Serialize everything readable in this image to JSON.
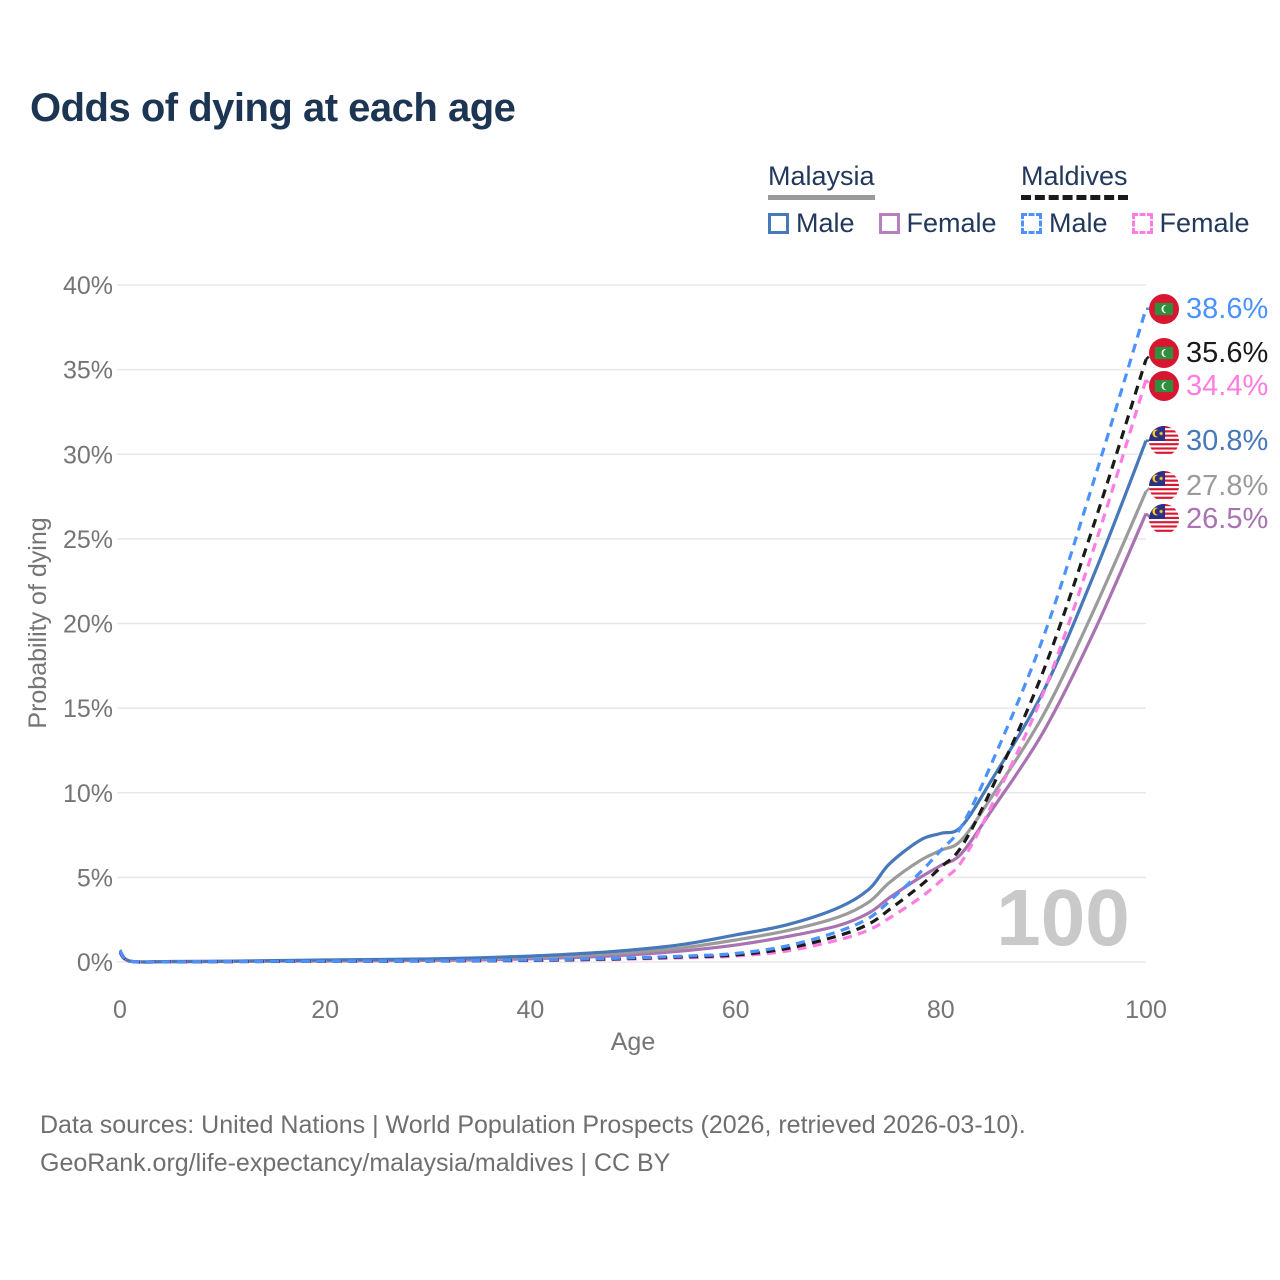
{
  "title": "Odds of dying at each age",
  "watermark": "100",
  "source": {
    "line1": "Data sources: United Nations | World Population Prospects (2026, retrieved 2026-03-10).",
    "line2": "GeoRank.org/life-expectancy/malaysia/maldives | CC BY"
  },
  "legend": {
    "groups": [
      {
        "label": "Malaysia",
        "line_style": "solid",
        "underline_color": "#9a9a9a",
        "items": [
          {
            "label": "Male",
            "color": "#4678ba"
          },
          {
            "label": "Female",
            "color": "#b77fbd"
          }
        ]
      },
      {
        "label": "Maldives",
        "line_style": "dashed",
        "underline_color": "#1a1a1a",
        "items": [
          {
            "label": "Male",
            "color": "#4b92ff"
          },
          {
            "label": "Female",
            "color": "#ff7de2"
          }
        ]
      }
    ]
  },
  "chart_data": {
    "type": "line",
    "title": "Odds of dying at each age",
    "xlabel": "Age",
    "ylabel": "Probability of dying",
    "xlim": [
      0,
      100
    ],
    "ylim": [
      0,
      40
    ],
    "xticks": [
      0,
      20,
      40,
      60,
      80,
      100
    ],
    "yticks": [
      0,
      5,
      10,
      15,
      20,
      25,
      30,
      35,
      40
    ],
    "ytick_suffix": "%",
    "grid": true,
    "legend_position": "top-right",
    "watermark_age": 100,
    "ages": [
      0,
      1,
      5,
      10,
      15,
      20,
      25,
      30,
      35,
      40,
      45,
      50,
      55,
      60,
      65,
      70,
      73,
      75,
      78,
      80,
      82,
      85,
      90,
      95,
      100
    ],
    "series": [
      {
        "name": "Maldives Male",
        "country": "Maldives",
        "sex": "Male",
        "style": "dashed",
        "color": "#4b92ff",
        "end_label": "38.6%",
        "end_value": 38.6,
        "values": [
          0.65,
          0.05,
          0.02,
          0.025,
          0.04,
          0.05,
          0.06,
          0.07,
          0.09,
          0.12,
          0.17,
          0.25,
          0.35,
          0.5,
          0.95,
          1.8,
          2.6,
          3.6,
          5.3,
          6.6,
          8.0,
          11.8,
          19.2,
          28.6,
          38.6
        ]
      },
      {
        "name": "Maldives Both sexes",
        "country": "Maldives",
        "sex": "Both sexes",
        "style": "dashed",
        "color": "#1a1a1a",
        "end_label": "35.6%",
        "end_value": 35.6,
        "values": [
          0.6,
          0.045,
          0.018,
          0.022,
          0.035,
          0.045,
          0.05,
          0.06,
          0.075,
          0.1,
          0.14,
          0.21,
          0.3,
          0.42,
          0.8,
          1.55,
          2.25,
          3.1,
          4.5,
          5.6,
          6.8,
          10.3,
          17.2,
          26.0,
          35.6
        ]
      },
      {
        "name": "Maldives Female",
        "country": "Maldives",
        "sex": "Female",
        "style": "dashed",
        "color": "#ff7de2",
        "end_label": "34.4%",
        "end_value": 34.4,
        "values": [
          0.55,
          0.04,
          0.015,
          0.02,
          0.03,
          0.04,
          0.045,
          0.055,
          0.065,
          0.085,
          0.12,
          0.18,
          0.25,
          0.35,
          0.65,
          1.3,
          1.9,
          2.6,
          3.8,
          4.8,
          5.9,
          9.3,
          15.9,
          24.6,
          34.4
        ]
      },
      {
        "name": "Malaysia Male",
        "country": "Malaysia",
        "sex": "Male",
        "style": "solid",
        "color": "#4678ba",
        "end_label": "30.8%",
        "end_value": 30.8,
        "values": [
          0.7,
          0.05,
          0.03,
          0.045,
          0.08,
          0.12,
          0.15,
          0.18,
          0.25,
          0.35,
          0.5,
          0.72,
          1.05,
          1.6,
          2.2,
          3.2,
          4.3,
          5.8,
          7.2,
          7.6,
          8.0,
          10.8,
          16.0,
          23.0,
          30.8
        ]
      },
      {
        "name": "Malaysia Both sexes",
        "country": "Malaysia",
        "sex": "Both sexes",
        "style": "solid",
        "color": "#9b9b9b",
        "end_label": "27.8%",
        "end_value": 27.8,
        "values": [
          0.62,
          0.045,
          0.025,
          0.04,
          0.065,
          0.09,
          0.11,
          0.14,
          0.19,
          0.27,
          0.39,
          0.57,
          0.85,
          1.3,
          1.85,
          2.65,
          3.55,
          4.7,
          6.0,
          6.6,
          7.2,
          9.8,
          14.6,
          20.9,
          27.8
        ]
      },
      {
        "name": "Malaysia Female",
        "country": "Malaysia",
        "sex": "Female",
        "style": "solid",
        "color": "#a873b0",
        "end_label": "26.5%",
        "end_value": 26.5,
        "values": [
          0.55,
          0.04,
          0.02,
          0.03,
          0.045,
          0.06,
          0.075,
          0.095,
          0.13,
          0.19,
          0.28,
          0.43,
          0.66,
          1.0,
          1.5,
          2.15,
          2.9,
          3.8,
          5.0,
          5.7,
          6.4,
          9.0,
          13.6,
          19.6,
          26.5
        ]
      }
    ]
  }
}
